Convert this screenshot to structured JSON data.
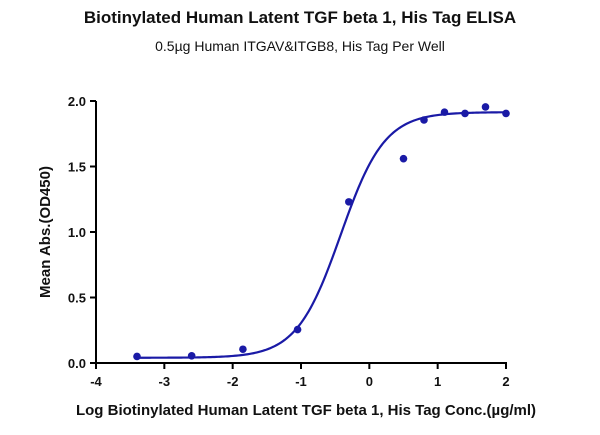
{
  "chart_data": {
    "type": "scatter",
    "title": "Biotinylated Human Latent TGF beta 1, His Tag ELISA",
    "subtitle": "0.5µg Human ITGAV&ITGB8, His Tag Per Well",
    "xlabel": "Log Biotinylated Human Latent TGF beta 1, His Tag Conc.(µg/ml)",
    "ylabel": "Mean Abs.(OD450)",
    "xlim": [
      -4,
      2
    ],
    "ylim": [
      0,
      2.0
    ],
    "xticks": [
      -4,
      -3,
      -2,
      -1,
      0,
      1,
      2
    ],
    "yticks": [
      0.0,
      0.5,
      1.0,
      1.5,
      2.0
    ],
    "xtick_labels": [
      "-4",
      "-3",
      "-2",
      "-1",
      "0",
      "1",
      "2"
    ],
    "ytick_labels": [
      "0.0",
      "0.5",
      "1.0",
      "1.5",
      "2.0"
    ],
    "grid": false,
    "series": [
      {
        "color": "#1a1aa6",
        "points": [
          {
            "x": -3.4,
            "y": 0.05
          },
          {
            "x": -2.6,
            "y": 0.055
          },
          {
            "x": -1.85,
            "y": 0.105
          },
          {
            "x": -1.05,
            "y": 0.255
          },
          {
            "x": -0.3,
            "y": 1.23
          },
          {
            "x": 0.5,
            "y": 1.56
          },
          {
            "x": 0.8,
            "y": 1.855
          },
          {
            "x": 1.1,
            "y": 1.915
          },
          {
            "x": 1.4,
            "y": 1.905
          },
          {
            "x": 1.7,
            "y": 1.955
          },
          {
            "x": 2.0,
            "y": 1.905
          }
        ],
        "fit": {
          "model": "4PL",
          "bottom": 0.04,
          "top": 1.915,
          "logEC50": -0.42,
          "hill": 1.35
        }
      }
    ]
  }
}
